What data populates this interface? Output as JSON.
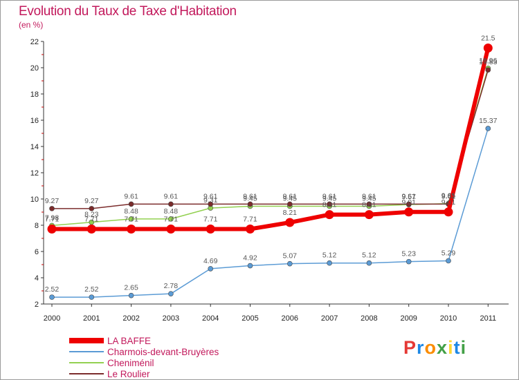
{
  "header": {
    "title": "Evolution du Taux de Taxe d'Habitation",
    "unit": "(en %)"
  },
  "logo": {
    "text": "Proxiti",
    "letters": [
      "P",
      "r",
      "o",
      "x",
      "i",
      "t",
      "i"
    ],
    "colors": [
      "#e53935",
      "#1e88e5",
      "#fb8c00",
      "#43a047",
      "#fdd835",
      "#1e88e5",
      "#43a047"
    ]
  },
  "chart_data": {
    "type": "line",
    "x": [
      "2000",
      "2001",
      "2002",
      "2003",
      "2004",
      "2005",
      "2006",
      "2007",
      "2008",
      "2009",
      "2010",
      "2011"
    ],
    "ylim": [
      2,
      22
    ],
    "yticks": [
      2,
      4,
      6,
      8,
      10,
      12,
      14,
      16,
      18,
      20,
      22
    ],
    "grid": false,
    "legend_position": "bottom-left",
    "series": [
      {
        "name": "LA BAFFE",
        "color": "#ee0000",
        "values": [
          7.71,
          7.71,
          7.71,
          7.71,
          7.71,
          7.71,
          8.21,
          8.81,
          8.81,
          9.01,
          9.01,
          21.5
        ],
        "labels": [
          "7.71",
          "7.71",
          "7.71",
          "7.71",
          "7.71",
          "7.71",
          "8.21",
          "8.81",
          "8.81",
          "9.01",
          "9.01",
          "21.5"
        ]
      },
      {
        "name": "Charmois-devant-Bruyères",
        "color": "#5b9bd5",
        "values": [
          2.52,
          2.52,
          2.65,
          2.78,
          4.69,
          4.92,
          5.07,
          5.12,
          5.12,
          5.23,
          5.29,
          15.37
        ],
        "labels": [
          "2.52",
          "2.52",
          "2.65",
          "2.78",
          "4.69",
          "4.92",
          "5.07",
          "5.12",
          "5.12",
          "5.23",
          "5.29",
          "15.37"
        ]
      },
      {
        "name": "Cheniménil",
        "color": "#92d050",
        "values": [
          7.98,
          8.23,
          8.48,
          8.48,
          9.31,
          9.45,
          9.45,
          9.45,
          9.45,
          9.57,
          9.65,
          19.96
        ],
        "labels": [
          "7.98",
          "8.23",
          "8.48",
          "8.48",
          "9.31",
          "9.45",
          "9.45",
          "9.45",
          "9.45",
          "9.57",
          "9.65",
          "19.96"
        ]
      },
      {
        "name": "Le Roulier",
        "color": "#7b2c2c",
        "values": [
          9.27,
          9.27,
          9.61,
          9.61,
          9.61,
          9.61,
          9.61,
          9.61,
          9.61,
          9.61,
          9.61,
          19.83
        ],
        "labels": [
          "9.27",
          "9.27",
          "9.61",
          "9.61",
          "9.61",
          "9.61",
          "9.61",
          "9.61",
          "9.61",
          "9.61",
          "9.61",
          "19.83"
        ]
      }
    ]
  }
}
